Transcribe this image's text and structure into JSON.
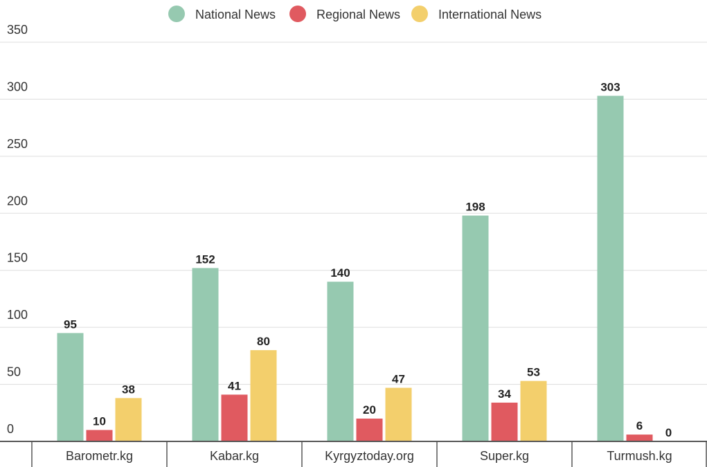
{
  "chart_data": {
    "type": "bar",
    "categories": [
      "Barometr.kg",
      "Kabar.kg",
      "Kyrgyztoday.org",
      "Super.kg",
      "Turmush.kg"
    ],
    "series": [
      {
        "name": "National News",
        "color": "#96c9b0",
        "values": [
          95,
          152,
          140,
          198,
          303
        ]
      },
      {
        "name": "Regional News",
        "color": "#e05a60",
        "values": [
          10,
          41,
          20,
          34,
          6
        ]
      },
      {
        "name": "International News",
        "color": "#f3cf6c",
        "values": [
          38,
          80,
          47,
          53,
          0
        ]
      }
    ],
    "ylim": [
      0,
      350
    ],
    "yticks": [
      0,
      50,
      100,
      150,
      200,
      250,
      300,
      350
    ],
    "grid": true,
    "legend": "top"
  }
}
